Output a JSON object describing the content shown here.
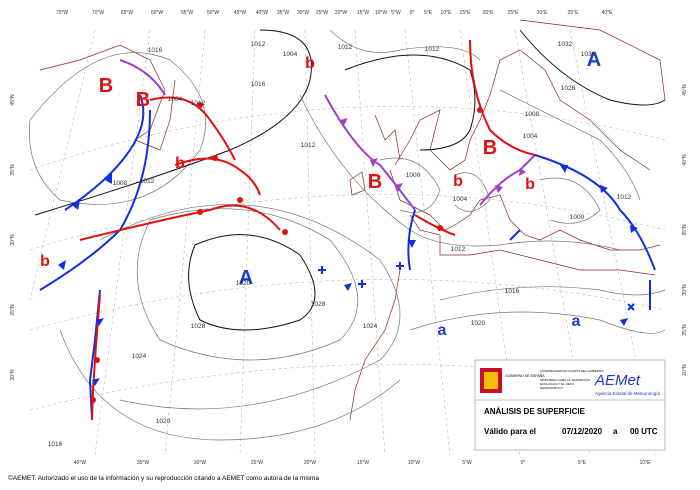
{
  "map": {
    "top_longitudes": [
      "75°W",
      "70°W",
      "65°W",
      "60°W",
      "55°W",
      "50°W",
      "45°W",
      "40°W",
      "35°W",
      "30°W",
      "25°W",
      "20°W",
      "15°W",
      "10°W",
      "5°W",
      "0°",
      "5°E",
      "10°E",
      "15°E",
      "20°E",
      "25°E",
      "30°E",
      "35°E",
      "40°E"
    ],
    "bottom_longitudes": [
      "40°W",
      "35°W",
      "30°W",
      "25°W",
      "20°W",
      "15°W",
      "10°W",
      "5°W",
      "0°",
      "5°E",
      "10°E"
    ],
    "left_latitudes": [
      "45°N",
      "35°N",
      "30°N",
      "25°N",
      "20°N"
    ],
    "right_latitudes": [
      "45°N",
      "40°N",
      "35°N",
      "30°N",
      "25°N",
      "20°N"
    ],
    "highs": [
      "A",
      "A"
    ],
    "lows": [
      "B",
      "B",
      "B",
      "B"
    ],
    "weak_highs": [
      "a",
      "a"
    ],
    "weak_lows": [
      "b",
      "b",
      "b",
      "b",
      "b"
    ],
    "isobar_labels": [
      1016,
      1012,
      1004,
      1012,
      1012,
      1032,
      1036,
      1028,
      1016,
      1004,
      1012,
      1008,
      1004,
      1012,
      1012,
      1008,
      1000,
      1004,
      1000,
      1012,
      1012,
      1016,
      1020,
      1024,
      1028,
      1028,
      1020,
      1024,
      1020,
      1016
    ]
  },
  "legend": {
    "title": "ANÁLISIS DE SUPERFICIE",
    "valid_label": "Válido para el",
    "date": "07/12/2020",
    "connector": "a",
    "time": "00 UTC",
    "gov": "GOBIERNO DE ESPAÑA",
    "vice": "VICEPRESIDENCIA CUARTA DEL GOBIERNO",
    "ministry": "MINISTERIO PARA LA TRANSICIÓN ECOLÓGICA Y EL RETO DEMOGRÁFICO",
    "brand": "AEMet",
    "agency": "Agencia Estatal de Meteorología"
  },
  "footer": "©AEMET. Autorizado el uso de la información y su reproducción citando a AEMET como autora de la misma"
}
